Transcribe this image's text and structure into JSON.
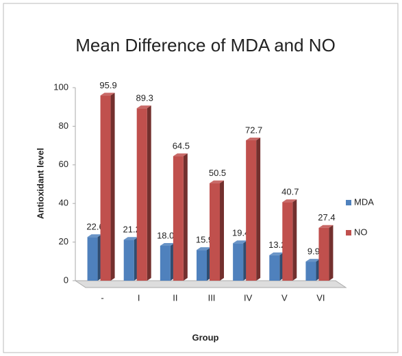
{
  "chart_data": {
    "type": "bar3d",
    "title": "Mean Difference of MDA and NO",
    "x_label": "Group",
    "y_label": "Antioxidant level",
    "categories": [
      "-",
      "I",
      "II",
      "III",
      "IV",
      "V",
      "VI"
    ],
    "series": [
      {
        "name": "MDA",
        "color": "#4f81bd",
        "values": [
          22.6,
          21.2,
          18.09,
          15.9,
          19.4,
          13.2,
          9.9
        ]
      },
      {
        "name": "NO",
        "color": "#c0504d",
        "values": [
          95.9,
          89.3,
          64.5,
          50.5,
          72.7,
          40.7,
          27.4
        ]
      }
    ],
    "ylim": [
      0,
      100
    ],
    "yticks": [
      0,
      20,
      40,
      60,
      80,
      100
    ],
    "grid": false,
    "legend": "right"
  }
}
